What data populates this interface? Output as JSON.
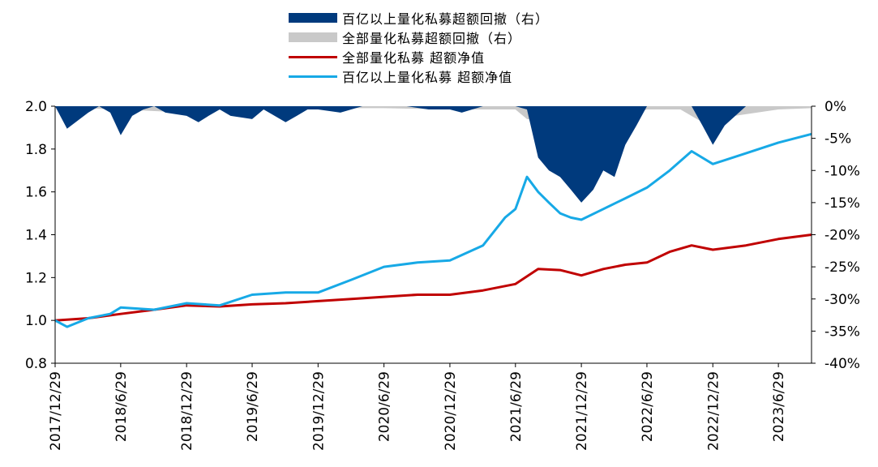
{
  "chart_data": {
    "type": "line",
    "legend_position": "top-center",
    "grid": false,
    "left_axis": {
      "ylim": [
        0.8,
        2.0
      ],
      "ticks": [
        "0.8",
        "1.0",
        "1.2",
        "1.4",
        "1.6",
        "1.8",
        "2.0"
      ]
    },
    "right_axis": {
      "ylim": [
        -40,
        0
      ],
      "ticks": [
        "0%",
        "-5%",
        "-10%",
        "-15%",
        "-20%",
        "-25%",
        "-30%",
        "-35%",
        "-40%"
      ]
    },
    "x_ticks": [
      "2017/12/29",
      "2018/6/29",
      "2018/12/29",
      "2019/6/29",
      "2019/12/29",
      "2020/6/29",
      "2020/12/29",
      "2021/6/29",
      "2021/12/29",
      "2022/6/29",
      "2022/12/29",
      "2023/6/29"
    ],
    "x_range": [
      "2017/12/29",
      "2023/9/29"
    ],
    "series": [
      {
        "name": "百亿以上量化私募超额回撤（右）",
        "kind": "area",
        "axis": "right",
        "color": "#003a7d",
        "x": [
          "2017/12/29",
          "2018/1/31",
          "2018/3/31",
          "2018/4/30",
          "2018/5/31",
          "2018/6/29",
          "2018/7/31",
          "2018/8/31",
          "2018/9/30",
          "2018/10/31",
          "2018/12/29",
          "2019/1/31",
          "2019/2/28",
          "2019/3/31",
          "2019/4/30",
          "2019/6/29",
          "2019/7/31",
          "2019/9/30",
          "2019/10/31",
          "2019/11/30",
          "2019/12/29",
          "2020/2/29",
          "2020/4/30",
          "2020/6/29",
          "2020/8/31",
          "2020/10/31",
          "2020/12/29",
          "2021/1/31",
          "2021/3/31",
          "2021/4/30",
          "2021/5/31",
          "2021/6/29",
          "2021/7/31",
          "2021/8/31",
          "2021/9/30",
          "2021/10/31",
          "2021/11/30",
          "2021/12/29",
          "2022/1/31",
          "2022/2/28",
          "2022/3/31",
          "2022/4/30",
          "2022/5/31",
          "2022/6/29",
          "2022/8/31",
          "2022/10/31",
          "2022/11/30",
          "2022/12/29",
          "2023/1/31",
          "2023/3/31",
          "2023/6/29",
          "2023/9/29"
        ],
        "values": [
          0,
          -3.5,
          -1,
          0,
          -1,
          -4.5,
          -1.5,
          -0.5,
          0,
          -1,
          -1.5,
          -2.5,
          -1.5,
          -0.5,
          -1.5,
          -2,
          -0.5,
          -2.5,
          -1.5,
          -0.5,
          -0.5,
          -1,
          0,
          0,
          0,
          -0.5,
          -0.5,
          -1,
          0,
          0,
          0,
          0,
          -0.5,
          -8,
          -10,
          -11,
          -13,
          -15,
          -13,
          -10,
          -11,
          -6,
          -3,
          0,
          0,
          0,
          -3,
          -6,
          -3,
          0,
          0,
          0
        ]
      },
      {
        "name": "全部量化私募超额回撤（右）",
        "kind": "area",
        "axis": "right",
        "color": "#c9c9c9",
        "x": [
          "2017/12/29",
          "2018/6/29",
          "2018/12/29",
          "2019/3/31",
          "2019/6/29",
          "2019/12/29",
          "2020/6/29",
          "2020/12/29",
          "2021/6/29",
          "2021/7/31",
          "2021/9/30",
          "2021/12/29",
          "2022/2/28",
          "2022/3/31",
          "2022/6/29",
          "2022/9/30",
          "2022/11/30",
          "2022/12/29",
          "2023/2/28",
          "2023/6/29",
          "2023/9/29"
        ],
        "values": [
          -0.2,
          -0.5,
          -1,
          -0.5,
          -0.5,
          -0.3,
          -0.3,
          -0.5,
          -0.5,
          -2,
          -2.5,
          -3,
          -2.5,
          -2,
          -0.5,
          -0.5,
          -2.5,
          -3.5,
          -1.5,
          -0.5,
          -0.3
        ]
      },
      {
        "name": "全部量化私募 超额净值",
        "kind": "line",
        "axis": "left",
        "color": "#c00000",
        "x": [
          "2017/12/29",
          "2018/3/31",
          "2018/6/29",
          "2018/9/30",
          "2018/12/29",
          "2019/3/31",
          "2019/6/29",
          "2019/9/30",
          "2019/12/29",
          "2020/3/31",
          "2020/6/29",
          "2020/9/30",
          "2020/12/29",
          "2021/3/31",
          "2021/6/29",
          "2021/8/31",
          "2021/10/31",
          "2021/12/29",
          "2022/2/28",
          "2022/4/30",
          "2022/6/29",
          "2022/8/31",
          "2022/10/31",
          "2022/12/29",
          "2023/3/31",
          "2023/6/29",
          "2023/9/29"
        ],
        "values": [
          1.0,
          1.01,
          1.03,
          1.05,
          1.07,
          1.065,
          1.075,
          1.08,
          1.09,
          1.1,
          1.11,
          1.12,
          1.12,
          1.14,
          1.17,
          1.24,
          1.235,
          1.21,
          1.24,
          1.26,
          1.27,
          1.32,
          1.35,
          1.33,
          1.35,
          1.38,
          1.4
        ]
      },
      {
        "name": "百亿以上量化私募 超额净值",
        "kind": "line",
        "axis": "left",
        "color": "#17a9e6",
        "x": [
          "2017/12/29",
          "2018/1/31",
          "2018/3/31",
          "2018/5/31",
          "2018/6/29",
          "2018/9/30",
          "2018/12/29",
          "2019/3/31",
          "2019/6/29",
          "2019/9/30",
          "2019/12/29",
          "2020/3/31",
          "2020/6/29",
          "2020/9/30",
          "2020/12/29",
          "2021/3/31",
          "2021/5/31",
          "2021/6/29",
          "2021/7/31",
          "2021/8/31",
          "2021/9/30",
          "2021/10/31",
          "2021/11/30",
          "2021/12/29",
          "2022/2/28",
          "2022/4/30",
          "2022/6/29",
          "2022/8/31",
          "2022/10/31",
          "2022/12/29",
          "2023/3/31",
          "2023/6/29",
          "2023/9/29"
        ],
        "values": [
          1.0,
          0.97,
          1.01,
          1.03,
          1.06,
          1.05,
          1.08,
          1.07,
          1.12,
          1.13,
          1.13,
          1.19,
          1.25,
          1.27,
          1.28,
          1.35,
          1.48,
          1.52,
          1.67,
          1.6,
          1.55,
          1.5,
          1.48,
          1.47,
          1.52,
          1.57,
          1.62,
          1.7,
          1.79,
          1.73,
          1.78,
          1.83,
          1.87
        ]
      }
    ]
  }
}
